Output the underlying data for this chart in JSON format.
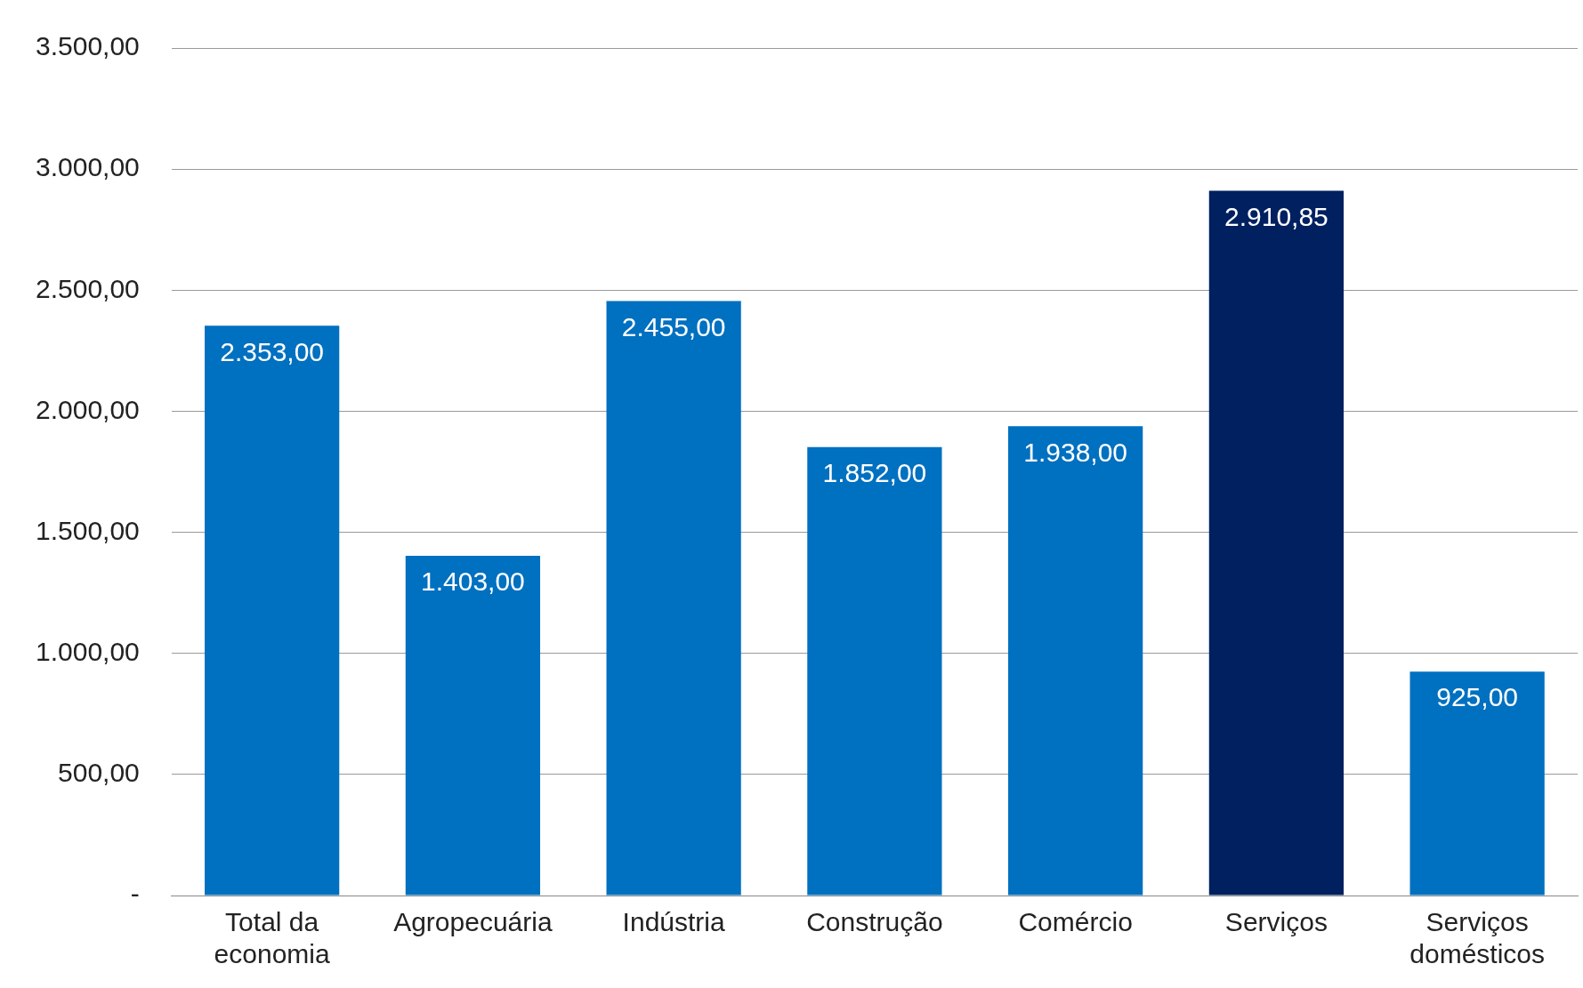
{
  "chart_data": {
    "type": "bar",
    "categories": [
      "Total da economia",
      "Agropecuária",
      "Indústria",
      "Construção",
      "Comércio",
      "Serviços",
      "Serviços domésticos"
    ],
    "values": [
      2353,
      1403,
      2455,
      1852,
      1938,
      2910.85,
      925
    ],
    "colors": [
      "#0070c0",
      "#0070c0",
      "#0070c0",
      "#0070c0",
      "#0070c0",
      "#002060",
      "#0070c0"
    ],
    "value_labels": [
      "2.353,00",
      "1.403,00",
      "2.455,00",
      "1.852,00",
      "1.938,00",
      "2.910,85",
      "925,00"
    ],
    "ylim": [
      0,
      3500
    ],
    "yticks": [
      {
        "value": 0,
        "label": "-"
      },
      {
        "value": 500,
        "label": "500,00"
      },
      {
        "value": 1000,
        "label": "1.000,00"
      },
      {
        "value": 1500,
        "label": "1.500,00"
      },
      {
        "value": 2000,
        "label": "2.000,00"
      },
      {
        "value": 2500,
        "label": "2.500,00"
      },
      {
        "value": 3000,
        "label": "3.000,00"
      },
      {
        "value": 3500,
        "label": "3.500,00"
      }
    ],
    "grid": "y",
    "legend": false
  }
}
